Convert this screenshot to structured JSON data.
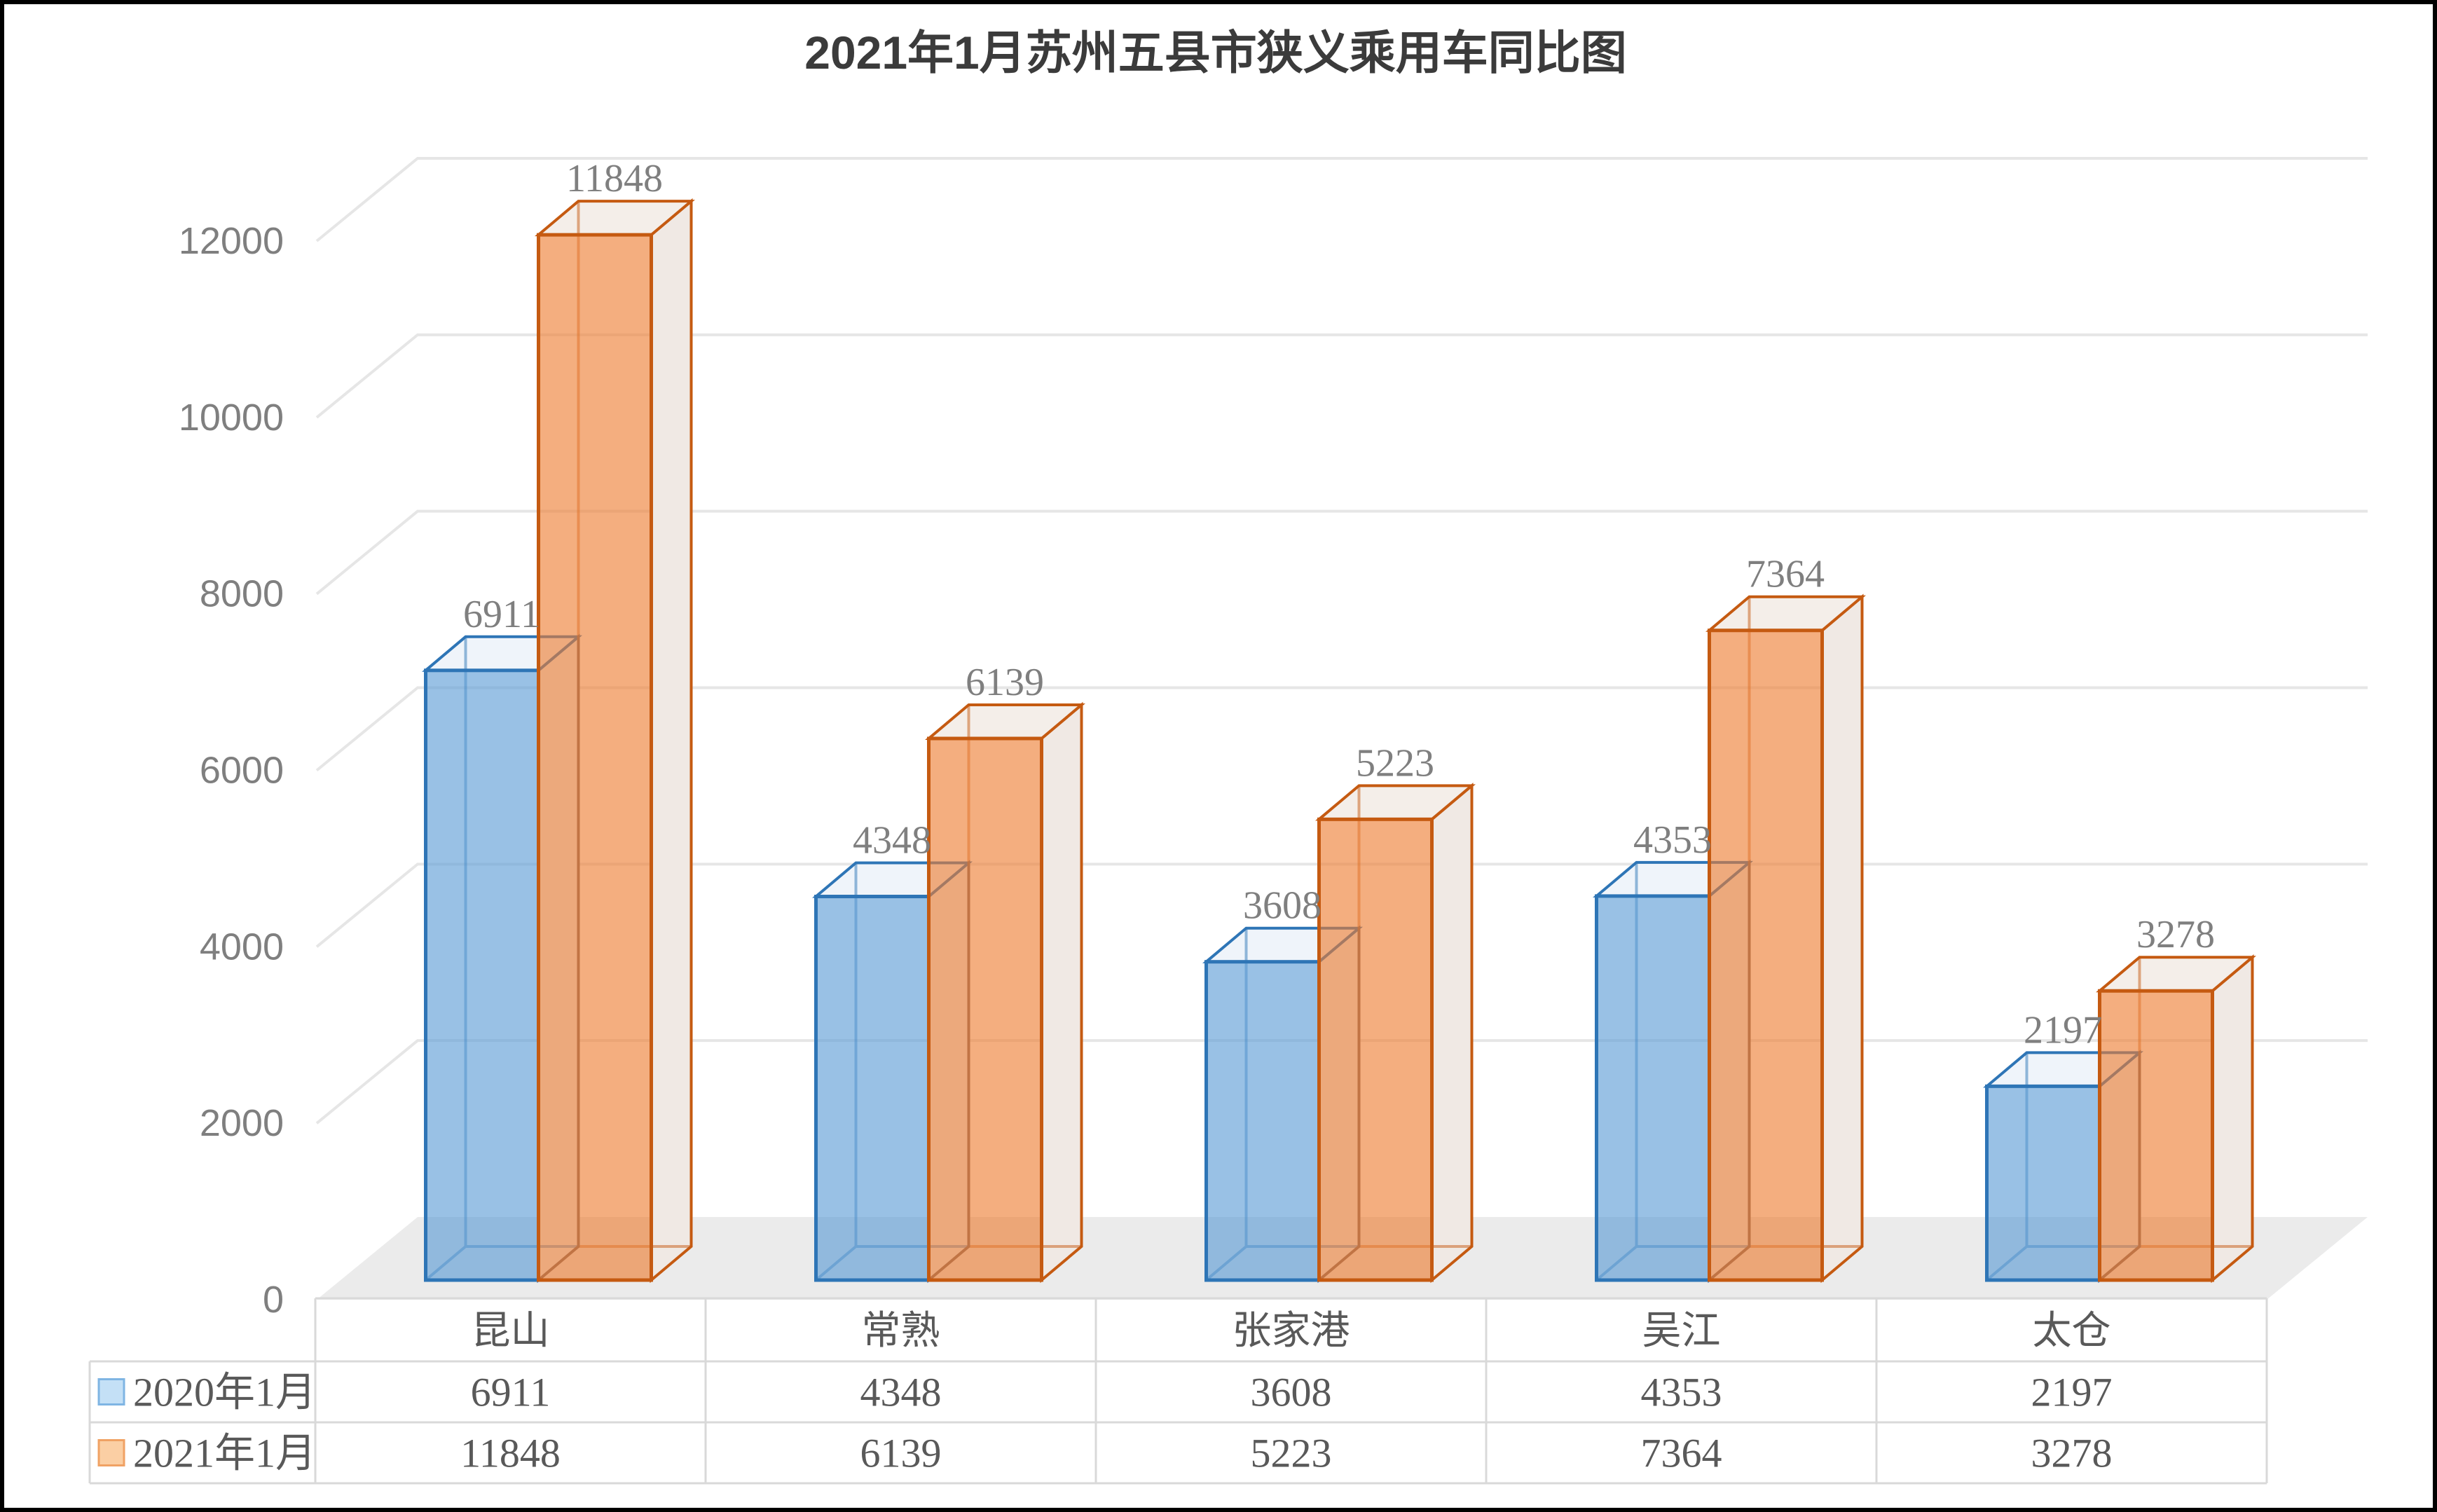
{
  "title": "2021年1月苏州五县市狭义乘用车同比图",
  "chart_data": {
    "type": "bar",
    "subtype": "3d-clustered-column",
    "title": "2021年1月苏州五县市狭义乘用车同比图",
    "categories": [
      "昆山",
      "常熟",
      "张家港",
      "吴江",
      "太仓"
    ],
    "series": [
      {
        "name": "2020年1月",
        "values": [
          6911,
          4348,
          3608,
          4353,
          2197
        ],
        "fill": "#5B9BD5",
        "edge": "#2E75B6",
        "side_face": "#EAF1F8",
        "top_face": "#EFF4FA",
        "legend_fill": "#C4E0F6",
        "legend_edge": "#7FB5E3"
      },
      {
        "name": "2021年1月",
        "values": [
          11848,
          6139,
          5223,
          7364,
          3278
        ],
        "fill": "#ED7D31",
        "edge": "#C55A11",
        "side_face": "#F0E9E4",
        "top_face": "#F4EEE9",
        "legend_fill": "#FBCFA4",
        "legend_edge": "#F0A264"
      }
    ],
    "ylim": [
      0,
      12000
    ],
    "ytick_step": 2000,
    "yticks": [
      "0",
      "2000",
      "4000",
      "6000",
      "8000",
      "10000",
      "12000"
    ],
    "grid": true,
    "legend_position": "bottom-table-left-column",
    "colors": {
      "grid": "#E6E6E6",
      "floor": "#EBEBEB",
      "axis_text": "#7F7F7F",
      "data_label_text": "#7F7F7F",
      "table_text": "#595959",
      "table_border": "#D9D9D9",
      "title_text": "#3B3B3B",
      "frame": "#000000",
      "background": "#FFFFFF"
    }
  }
}
